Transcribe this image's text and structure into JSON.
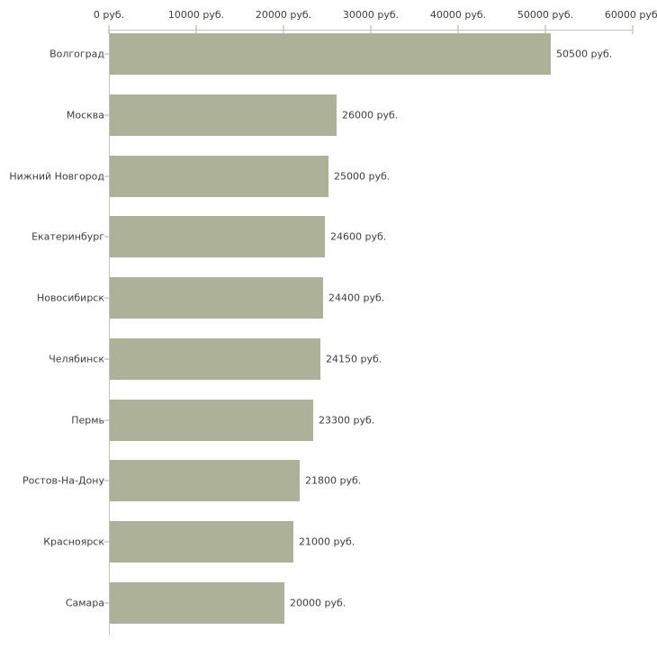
{
  "chart_data": {
    "type": "bar",
    "orientation": "horizontal",
    "title": "",
    "xlabel": "",
    "ylabel": "",
    "unit": "руб.",
    "categories": [
      "Волгоград",
      "Москва",
      "Нижний Новгород",
      "Екатеринбург",
      "Новосибирск",
      "Челябинск",
      "Пермь",
      "Ростов-На-Дону",
      "Красноярск",
      "Самара"
    ],
    "values": [
      50500,
      26000,
      25000,
      24600,
      24400,
      24150,
      23300,
      21800,
      21000,
      20000
    ],
    "value_labels": [
      "50500 руб.",
      "26000 руб.",
      "25000 руб.",
      "24600 руб.",
      "24400 руб.",
      "24150 руб.",
      "23300 руб.",
      "21800 руб.",
      "21000 руб.",
      "20000 руб."
    ],
    "x_ticks": [
      0,
      10000,
      20000,
      30000,
      40000,
      50000,
      60000
    ],
    "x_tick_labels": [
      "0 руб.",
      "10000 руб.",
      "20000 руб.",
      "30000 руб.",
      "40000 руб.",
      "50000 руб.",
      "60000 руб."
    ],
    "xlim": [
      0,
      60000
    ],
    "grid": false,
    "legend": null,
    "colors": {
      "bar": "#acb198",
      "axis_line": "#c2c2c2",
      "tick_mark": "#d6d9c0",
      "text": "#3d3d3d",
      "background": "#ffffff"
    }
  }
}
